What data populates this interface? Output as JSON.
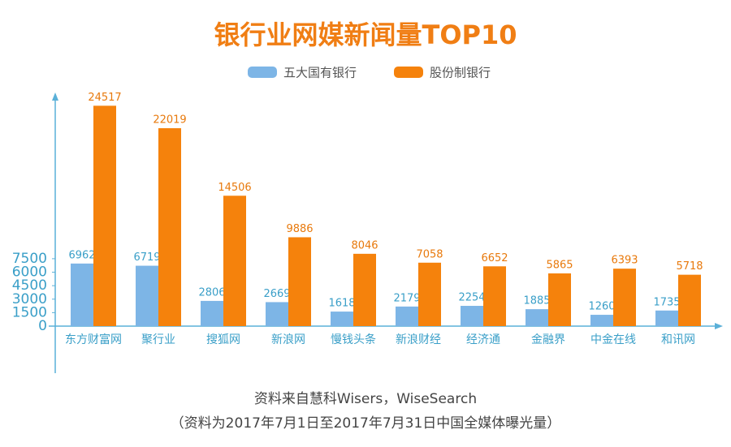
{
  "chart_data": {
    "type": "bar",
    "title": "银行业网媒新闻量TOP10",
    "categories": [
      "东方财富网",
      "聚行业",
      "搜狐网",
      "新浪网",
      "慢钱头条",
      "新浪财经",
      "经济通",
      "金融界",
      "中金在线",
      "和讯网"
    ],
    "series": [
      {
        "name": "五大国有银行",
        "color": "#7db5e6",
        "values": [
          6962,
          6719,
          2806,
          2669,
          1618,
          2179,
          2254,
          1885,
          1260,
          1735
        ]
      },
      {
        "name": "股份制银行",
        "color": "#f5820c",
        "values": [
          24517,
          22019,
          14506,
          9886,
          8046,
          7058,
          6652,
          5865,
          6393,
          5718
        ]
      }
    ],
    "ylim": [
      0,
      25000
    ],
    "yticks": [
      0,
      1500,
      3000,
      4500,
      6000,
      7500
    ],
    "grid": false,
    "legend": "top",
    "source": "资料来自慧科Wisers，WiseSearch",
    "note": "（资料为2017年7月1日至2017年7月31日中国全媒体曝光量）"
  }
}
